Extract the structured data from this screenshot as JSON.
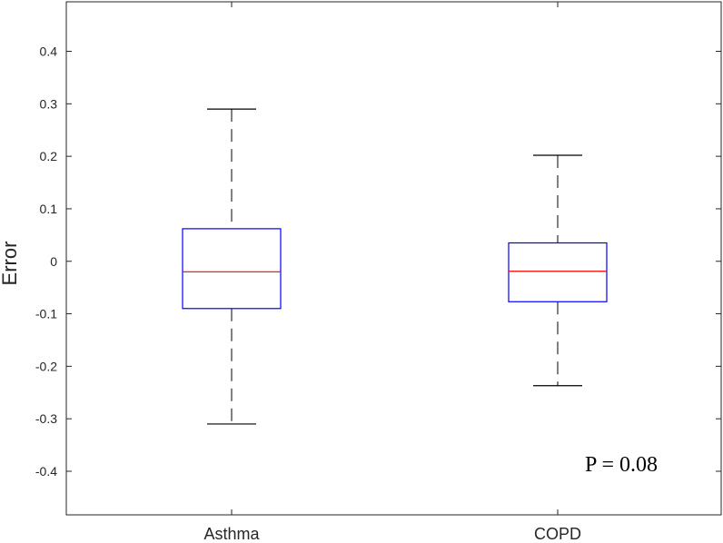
{
  "chart_data": {
    "type": "box",
    "title": "",
    "xlabel": "",
    "ylabel": "Error",
    "ylim": [
      -0.48,
      0.5
    ],
    "yticks": [
      0.4,
      0.3,
      0.2,
      0.1,
      0,
      -0.1,
      -0.2,
      -0.3,
      -0.4
    ],
    "ytick_labels": [
      "0.4",
      "0.3",
      "0.2",
      "0.1",
      "0",
      "-0.1",
      "-0.2",
      "-0.3",
      "-0.4"
    ],
    "categories": [
      "Asthma",
      "COPD"
    ],
    "boxes": [
      {
        "category": "Asthma",
        "min": -0.31,
        "q1": -0.09,
        "median": -0.02,
        "q3": 0.062,
        "max": 0.29
      },
      {
        "category": "COPD",
        "min": -0.237,
        "q1": -0.077,
        "median": -0.019,
        "q3": 0.035,
        "max": 0.202
      }
    ],
    "annotation": "P = 0.08",
    "grid": false,
    "colors": {
      "box": "#0000ff",
      "median": "#ff0000",
      "whisker": "#000000",
      "axis": "#262626"
    }
  }
}
